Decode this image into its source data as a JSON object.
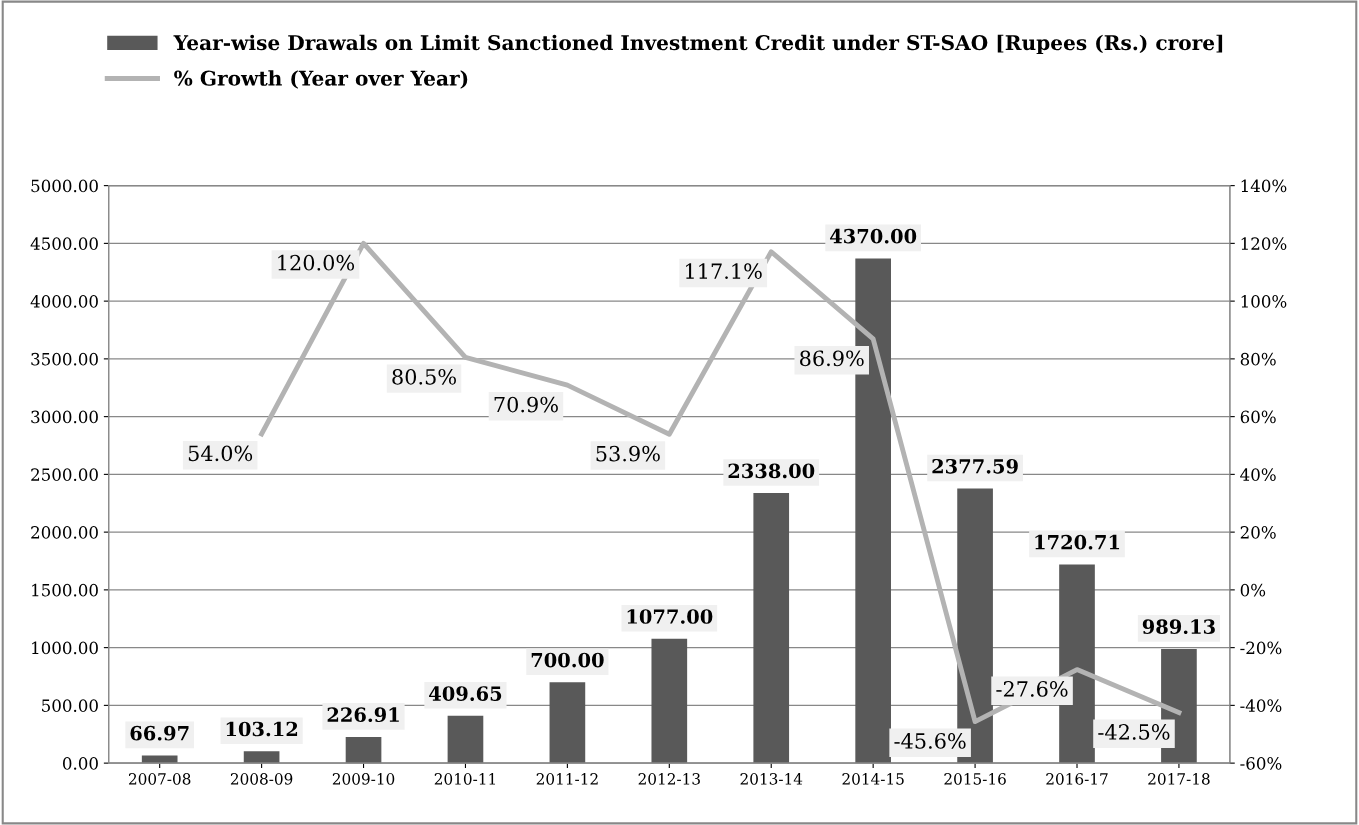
{
  "chart_data": {
    "type": "bar",
    "categories": [
      "2007-08",
      "2008-09",
      "2009-10",
      "2010-11",
      "2011-12",
      "2012-13",
      "2013-14",
      "2014-15",
      "2015-16",
      "2016-17",
      "2017-18"
    ],
    "series": [
      {
        "name": "Year-wise Drawals on Limit Sanctioned Investment Credit under ST-SAO [Rupees (Rs.) crore]",
        "color": "#595959",
        "values": [
          66.97,
          103.12,
          226.91,
          409.65,
          700.0,
          1077.0,
          2338.0,
          4370.0,
          2377.59,
          1720.71,
          989.13
        ],
        "value_labels": [
          "66.97",
          "103.12",
          "226.91",
          "409.65",
          "700.00",
          "1077.00",
          "2338.00",
          "4370.00",
          "2377.59",
          "1720.71",
          "989.13"
        ]
      },
      {
        "name": "% Growth (Year over Year)",
        "type": "line",
        "axis": "y2",
        "color": "#b3b3b3",
        "values": [
          null,
          54.0,
          120.0,
          80.5,
          70.9,
          53.9,
          117.1,
          86.9,
          -45.6,
          -27.6,
          -42.5
        ],
        "value_labels": [
          null,
          "54.0%",
          "120.0%",
          "80.5%",
          "70.9%",
          "53.9%",
          "117.1%",
          "86.9%",
          "-45.6%",
          "-27.6%",
          "-42.5%"
        ]
      }
    ],
    "ylim": [
      0,
      5000
    ],
    "yticks": [
      {
        "value": 0,
        "label": "0.00"
      },
      {
        "value": 500,
        "label": "500.00"
      },
      {
        "value": 1000,
        "label": "1000.00"
      },
      {
        "value": 1500,
        "label": "1500.00"
      },
      {
        "value": 2000,
        "label": "2000.00"
      },
      {
        "value": 2500,
        "label": "2500.00"
      },
      {
        "value": 3000,
        "label": "3000.00"
      },
      {
        "value": 3500,
        "label": "3500.00"
      },
      {
        "value": 4000,
        "label": "4000.00"
      },
      {
        "value": 4500,
        "label": "4500.00"
      },
      {
        "value": 5000,
        "label": "5000.00"
      }
    ],
    "y2lim": [
      -60,
      140
    ],
    "y2ticks": [
      {
        "value": -60,
        "label": "-60%"
      },
      {
        "value": -40,
        "label": "-40%"
      },
      {
        "value": -20,
        "label": "-20%"
      },
      {
        "value": 0,
        "label": "0%"
      },
      {
        "value": 20,
        "label": "20%"
      },
      {
        "value": 40,
        "label": "40%"
      },
      {
        "value": 60,
        "label": "60%"
      },
      {
        "value": 80,
        "label": "80%"
      },
      {
        "value": 100,
        "label": "100%"
      },
      {
        "value": 120,
        "label": "120%"
      },
      {
        "value": 140,
        "label": "140%"
      }
    ],
    "grid": "y",
    "legend": "top",
    "marker": "none"
  }
}
